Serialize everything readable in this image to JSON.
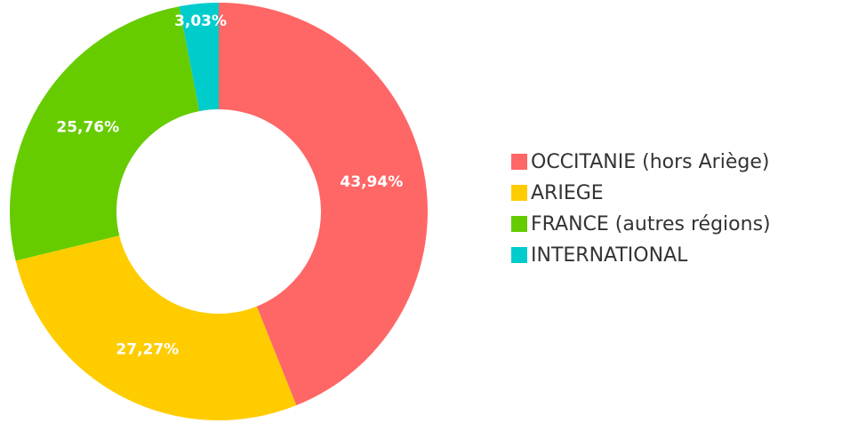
{
  "chart_data": {
    "type": "pie",
    "donut": true,
    "categories": [
      "OCCITANIE (hors Ariège)",
      "ARIEGE",
      "FRANCE (autres régions)",
      "INTERNATIONAL"
    ],
    "values": [
      43.94,
      27.27,
      25.76,
      3.03
    ],
    "value_labels": [
      "43,94%",
      "27,27%",
      "25,76%",
      "3,03%"
    ],
    "colors": [
      "#ff6666",
      "#ffcc00",
      "#66cc00",
      "#00cccc"
    ],
    "legend": "right"
  }
}
